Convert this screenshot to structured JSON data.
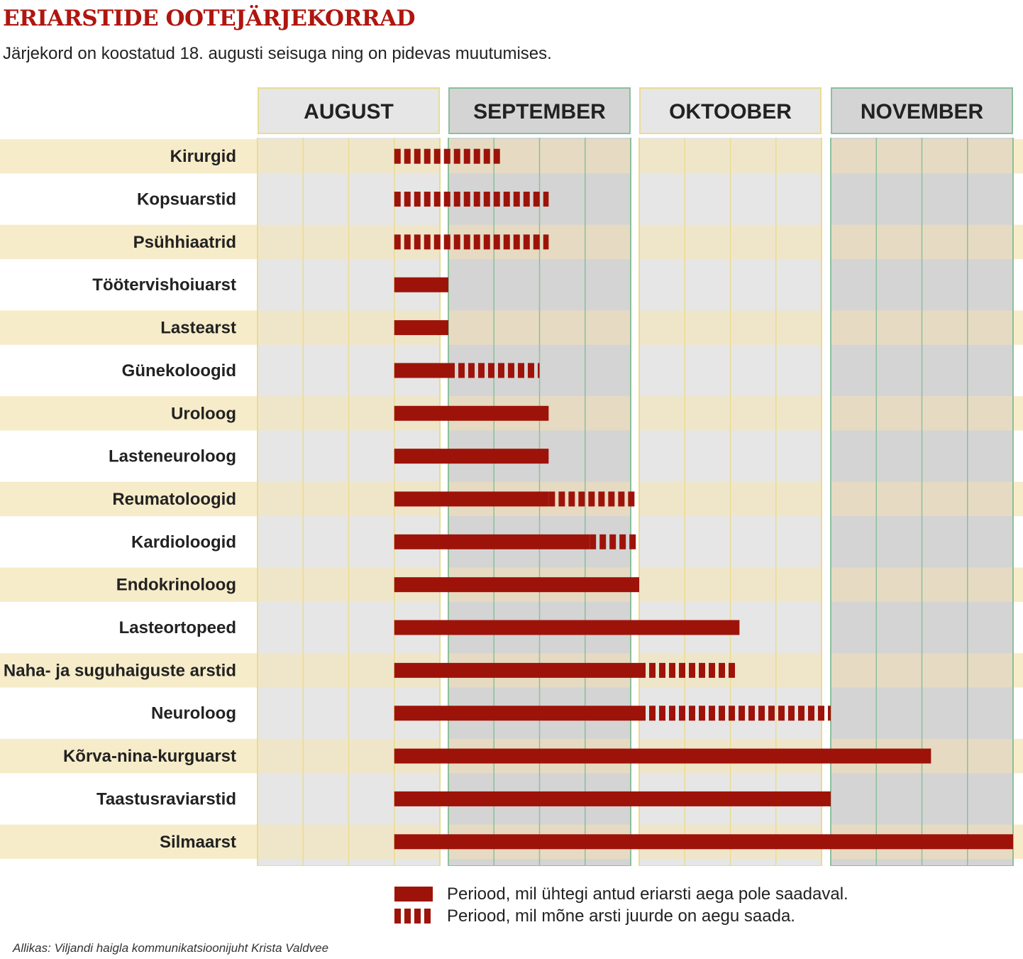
{
  "title": "ERIARSTIDE OOTEJÄRJEKORRAD",
  "subtitle": "Järjekord on koostatud 18. augusti seisuga ning on pidevas muutumises.",
  "source": "Allikas: Viljandi haigla kommunikatsioonijuht Krista Valdvee",
  "legend": {
    "solid": "Periood, mil ühtegi antud eriarsti aega pole saadaval.",
    "dashed": "Periood, mil mõne arsti juurde on aegu saada."
  },
  "colors": {
    "bar": "#9e1309",
    "title": "#b0150f",
    "row_stripe": "#f7ecc9",
    "month_light": "#e6e6e6",
    "month_dark": "#d4d4d4",
    "row_stripe_dark": "#e8dcc0",
    "line_yellow": "#e9dc91",
    "line_green": "#8cbf9c"
  },
  "chart_data": {
    "type": "gantt",
    "unit": "week",
    "months": [
      {
        "label": "AUGUST",
        "weeks": 4
      },
      {
        "label": "SEPTEMBER",
        "weeks": 4
      },
      {
        "label": "OKTOOBER",
        "weeks": 4
      },
      {
        "label": "NOVEMBER",
        "weeks": 4
      }
    ],
    "rows": [
      {
        "label": "Kirurgid",
        "segments": [
          {
            "start": 3,
            "end": 5.2,
            "style": "dashed"
          }
        ]
      },
      {
        "label": "Kopsuarstid",
        "segments": [
          {
            "start": 3,
            "end": 6.2,
            "style": "dashed"
          }
        ]
      },
      {
        "label": "Psühhiaatrid",
        "segments": [
          {
            "start": 3,
            "end": 6.2,
            "style": "dashed"
          }
        ]
      },
      {
        "label": "Töötervishoiuarst",
        "segments": [
          {
            "start": 3,
            "end": 4,
            "style": "solid"
          }
        ]
      },
      {
        "label": "Lastearst",
        "segments": [
          {
            "start": 3,
            "end": 4,
            "style": "solid"
          }
        ]
      },
      {
        "label": "Günekoloogid",
        "segments": [
          {
            "start": 3,
            "end": 4,
            "style": "solid"
          },
          {
            "start": 4,
            "end": 6,
            "style": "dashed"
          }
        ]
      },
      {
        "label": "Uroloog",
        "segments": [
          {
            "start": 3,
            "end": 6.2,
            "style": "solid"
          }
        ]
      },
      {
        "label": "Lasteneuroloog",
        "segments": [
          {
            "start": 3,
            "end": 6.2,
            "style": "solid"
          }
        ]
      },
      {
        "label": "Reumatoloogid",
        "segments": [
          {
            "start": 3,
            "end": 6.2,
            "style": "solid"
          },
          {
            "start": 6.2,
            "end": 8,
            "style": "dashed"
          }
        ]
      },
      {
        "label": "Kardioloogid",
        "segments": [
          {
            "start": 3,
            "end": 7.1,
            "style": "solid"
          },
          {
            "start": 7.1,
            "end": 8,
            "style": "dashed"
          }
        ]
      },
      {
        "label": "Endokrinoloog",
        "segments": [
          {
            "start": 3,
            "end": 8,
            "style": "solid"
          }
        ]
      },
      {
        "label": "Lasteortopeed",
        "segments": [
          {
            "start": 3,
            "end": 10.2,
            "style": "solid"
          }
        ]
      },
      {
        "label": "Naha- ja suguhaiguste arstid",
        "segments": [
          {
            "start": 3,
            "end": 8,
            "style": "solid"
          },
          {
            "start": 8,
            "end": 10.2,
            "style": "dashed"
          }
        ]
      },
      {
        "label": "Neuroloog",
        "segments": [
          {
            "start": 3,
            "end": 8,
            "style": "solid"
          },
          {
            "start": 8,
            "end": 12,
            "style": "dashed"
          }
        ]
      },
      {
        "label": "Kõrva-nina-kurguarst",
        "segments": [
          {
            "start": 3,
            "end": 14.2,
            "style": "solid"
          }
        ]
      },
      {
        "label": "Taastusraviarstid",
        "segments": [
          {
            "start": 3,
            "end": 12,
            "style": "solid"
          }
        ]
      },
      {
        "label": "Silmaarst",
        "segments": [
          {
            "start": 3,
            "end": 16,
            "style": "solid"
          }
        ]
      }
    ]
  }
}
